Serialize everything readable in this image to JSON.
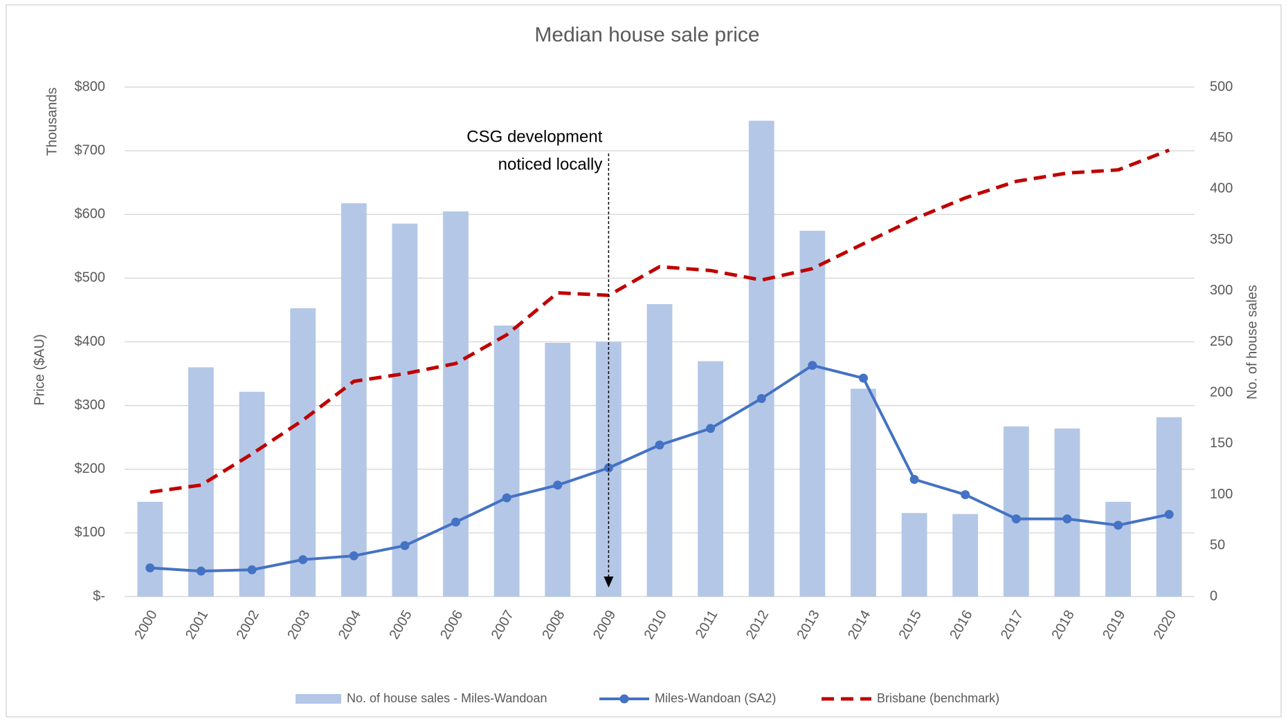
{
  "chart_data": {
    "type": "bar_line",
    "title": "Median house sale price",
    "y_axis_label": "Price ($AU)",
    "y_axis_unit_label": "Thousands",
    "y2_axis_label": "No. of house sales",
    "categories": [
      "2000",
      "2001",
      "2002",
      "2003",
      "2004",
      "2005",
      "2006",
      "2007",
      "2008",
      "2009",
      "2010",
      "2011",
      "2012",
      "2013",
      "2014",
      "2015",
      "2016",
      "2017",
      "2018",
      "2019",
      "2020"
    ],
    "series": [
      {
        "name": "No. of house sales - Miles-Wandoan",
        "kind": "bar",
        "axis": "y2",
        "color": "#b4c7e7",
        "values": [
          93,
          225,
          201,
          283,
          386,
          366,
          378,
          266,
          249,
          250,
          287,
          231,
          467,
          359,
          204,
          82,
          81,
          167,
          165,
          93,
          176
        ]
      },
      {
        "name": "Miles-Wandoan (SA2)",
        "kind": "line",
        "axis": "y",
        "color": "#4472c4",
        "marker": true,
        "values": [
          45,
          40,
          42,
          58,
          64,
          80,
          117,
          155,
          175,
          202,
          238,
          264,
          311,
          363,
          343,
          184,
          160,
          122,
          122,
          112,
          129
        ]
      },
      {
        "name": "Brisbane (benchmark)",
        "kind": "line",
        "axis": "y",
        "color": "#c00000",
        "dashed": true,
        "values": [
          164,
          175,
          224,
          277,
          338,
          350,
          366,
          411,
          477,
          473,
          518,
          512,
          497,
          515,
          554,
          593,
          626,
          652,
          665,
          670,
          701
        ]
      }
    ],
    "ylim": [
      0,
      800
    ],
    "yticks": [
      {
        "value": 0,
        "label": "$-"
      },
      {
        "value": 100,
        "label": "$100"
      },
      {
        "value": 200,
        "label": "$200"
      },
      {
        "value": 300,
        "label": "$300"
      },
      {
        "value": 400,
        "label": "$400"
      },
      {
        "value": 500,
        "label": "$500"
      },
      {
        "value": 600,
        "label": "$600"
      },
      {
        "value": 700,
        "label": "$700"
      },
      {
        "value": 800,
        "label": "$800"
      }
    ],
    "y2lim": [
      0,
      500
    ],
    "y2ticks": [
      0,
      50,
      100,
      150,
      200,
      250,
      300,
      350,
      400,
      450,
      500
    ],
    "grid": true,
    "legend": "bottom",
    "annotations": [
      {
        "lines": [
          "CSG development",
          "noticed locally"
        ],
        "category": "2009"
      }
    ]
  }
}
